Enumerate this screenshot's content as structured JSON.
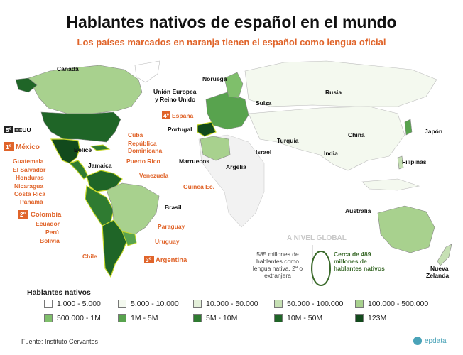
{
  "header": {
    "title": "Hablantes nativos de español en el mundo",
    "subtitle": "Los países marcados en naranja tienen el español como lengua oficial"
  },
  "colors": {
    "c0": "#ffffff",
    "c1": "#f4f9ef",
    "c2": "#e3efd9",
    "c3": "#c6e0b4",
    "c4": "#a8d18e",
    "c5": "#7fbf6b",
    "c6": "#58a34e",
    "c7": "#2f7b31",
    "c8": "#124a1c",
    "ocean": "#ffffff",
    "orange": "#e0642a",
    "outline": "#c9d92a"
  },
  "labels": {
    "canada": "Canadá",
    "eeuu": "EEUU",
    "eeuu_rank": "5º",
    "mexico": "México",
    "mexico_rank": "1º",
    "guatemala": "Guatemala",
    "el_salvador": "El Salvador",
    "honduras": "Honduras",
    "nicaragua": "Nicaragua",
    "costa_rica": "Costa Rica",
    "panama": "Panamá",
    "colombia": "Colombia",
    "colombia_rank": "2º",
    "ecuador": "Ecuador",
    "peru": "Perú",
    "bolivia": "Bolivia",
    "chile": "Chile",
    "argentina": "Argentina",
    "argentina_rank": "3º",
    "uruguay": "Uruguay",
    "paraguay": "Paraguay",
    "brasil": "Brasil",
    "venezuela": "Venezuela",
    "puerto_rico": "Puerto Rico",
    "rep_dom_1": "República",
    "rep_dom_2": "Dominicana",
    "cuba": "Cuba",
    "belice": "Belice",
    "jamaica": "Jamaica",
    "noruega": "Noruega",
    "ue_1": "Unión Europea",
    "ue_2": "y Reino Unido",
    "espana": "España",
    "espana_rank": "4º",
    "portugal": "Portugal",
    "marruecos": "Marruecos",
    "argelia": "Argelia",
    "guinea": "Guinea Ec.",
    "suiza": "Suiza",
    "turquia": "Turquía",
    "israel": "Israel",
    "rusia": "Rusia",
    "china": "China",
    "india": "India",
    "japon": "Japón",
    "filipinas": "Filipinas",
    "australia": "Australia",
    "nz_1": "Nueva",
    "nz_2": "Zelanda"
  },
  "global": {
    "title": "A NIVEL GLOBAL",
    "left_note": "585 millones de hablantes como lengua nativa, 2ª o extranjera",
    "right_note": "Cerca de 489 millones de hablantes nativos"
  },
  "legend": {
    "title": "Hablantes nativos",
    "items": [
      {
        "label": "1.000 - 5.000",
        "color": "#ffffff"
      },
      {
        "label": "5.000 - 10.000",
        "color": "#f4f9ef"
      },
      {
        "label": "10.000 - 50.000",
        "color": "#e3efd9"
      },
      {
        "label": "50.000 - 100.000",
        "color": "#c6e0b4"
      },
      {
        "label": "100.000 - 500.000",
        "color": "#a8d18e"
      },
      {
        "label": "500.000 - 1M",
        "color": "#7fbf6b"
      },
      {
        "label": "1M - 5M",
        "color": "#58a34e"
      },
      {
        "label": "5M - 10M",
        "color": "#2f7b31"
      },
      {
        "label": "10M - 50M",
        "color": "#1f6527"
      },
      {
        "label": "123M",
        "color": "#124a1c"
      }
    ]
  },
  "footer": {
    "source": "Fuente: Instituto Cervantes",
    "brand": "epdata"
  }
}
